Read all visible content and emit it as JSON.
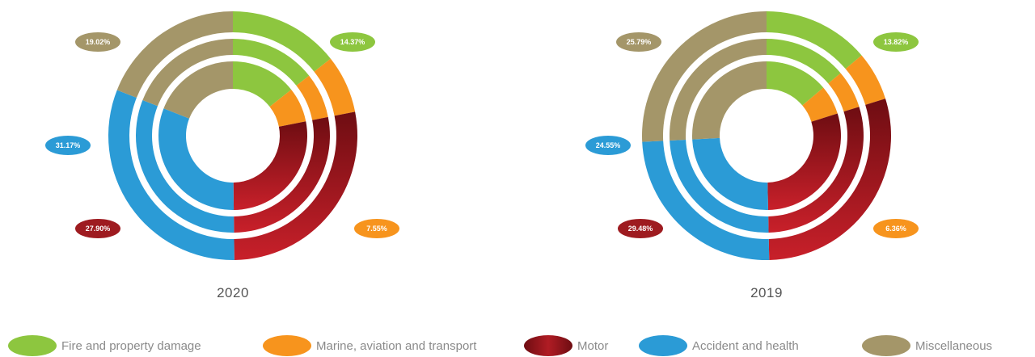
{
  "chart_data": {
    "type": "pie",
    "variant": "multi-ring donut",
    "legend": {
      "placement": "bottom",
      "items": [
        {
          "name": "Fire and property damage",
          "color": "#8dc63f"
        },
        {
          "name": "Marine, aviation and transport",
          "color": "#f7941d"
        },
        {
          "name": "Motor",
          "color": "#9e1b20"
        },
        {
          "name": "Accident and health",
          "color": "#2b9bd6"
        },
        {
          "name": "Miscellaneous",
          "color": "#a49669"
        }
      ]
    },
    "charts": [
      {
        "year": "2020",
        "slices": [
          {
            "name": "Fire and property damage",
            "value": 14.37,
            "label": "14.37%"
          },
          {
            "name": "Marine, aviation and transport",
            "value": 7.55,
            "label": "7.55%"
          },
          {
            "name": "Motor",
            "value": 27.9,
            "label": "27.90%"
          },
          {
            "name": "Accident and health",
            "value": 31.17,
            "label": "31.17%"
          },
          {
            "name": "Miscellaneous",
            "value": 19.02,
            "label": "19.02%"
          }
        ]
      },
      {
        "year": "2019",
        "slices": [
          {
            "name": "Fire and property damage",
            "value": 13.82,
            "label": "13.82%"
          },
          {
            "name": "Marine, aviation and transport",
            "value": 6.36,
            "label": "6.36%"
          },
          {
            "name": "Motor",
            "value": 29.48,
            "label": "29.48%"
          },
          {
            "name": "Accident and health",
            "value": 24.55,
            "label": "24.55%"
          },
          {
            "name": "Miscellaneous",
            "value": 25.79,
            "label": "25.79%"
          }
        ]
      }
    ]
  }
}
